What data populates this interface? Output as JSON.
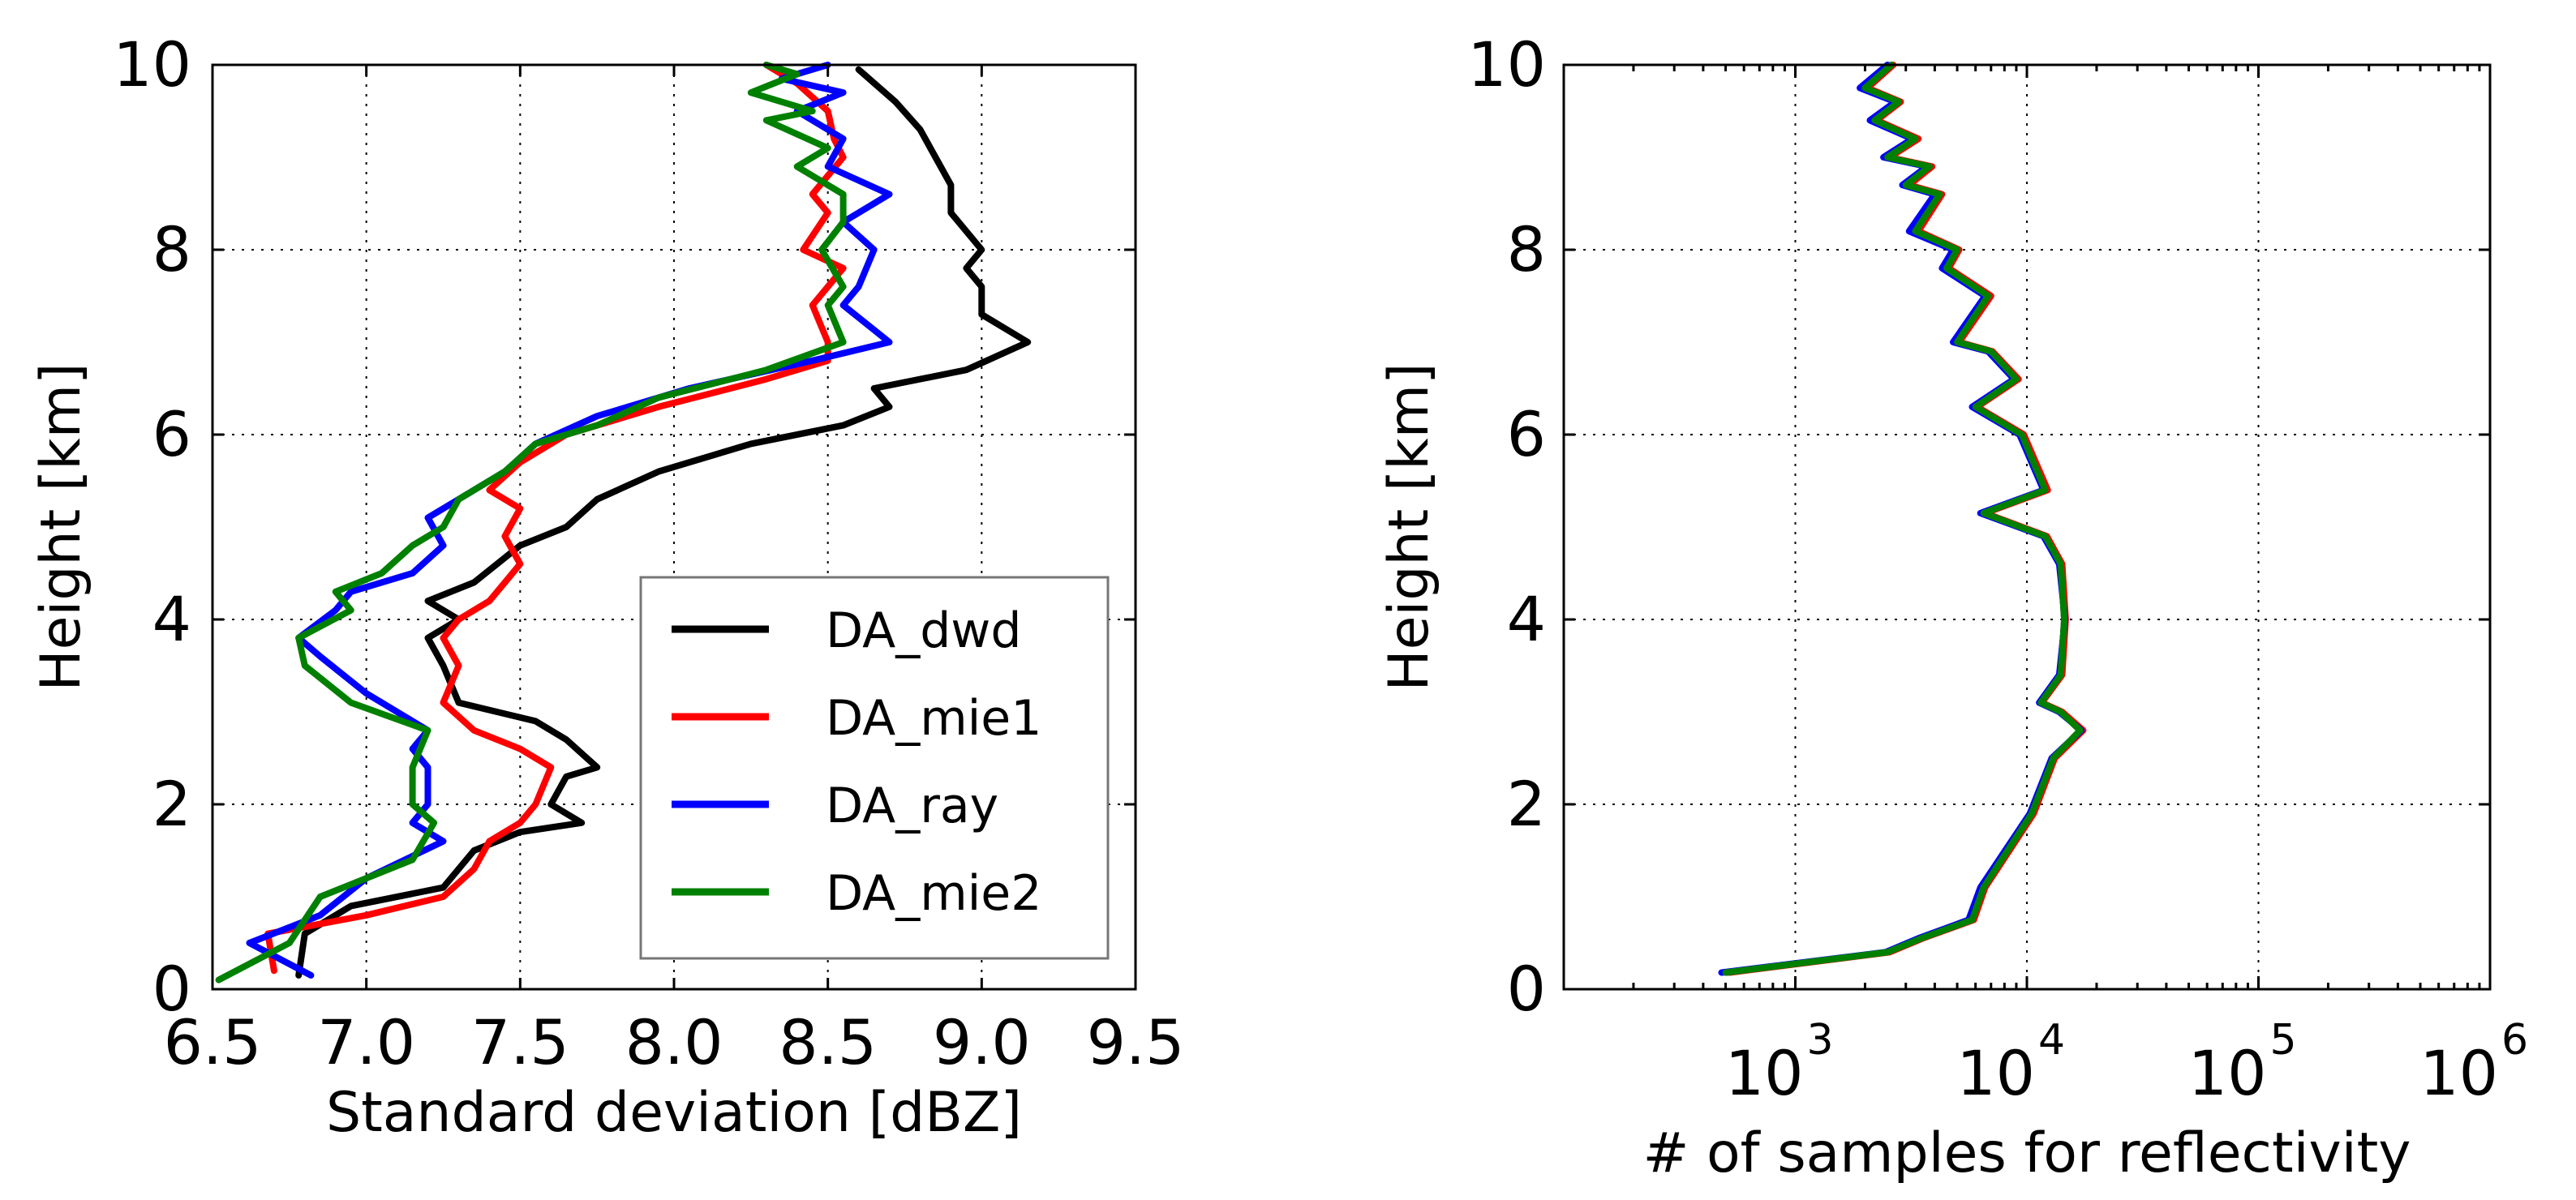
{
  "chart_data": [
    {
      "type": "line",
      "xlabel": "Standard deviation [dBZ]",
      "ylabel": "Height [km]",
      "xlim": [
        6.5,
        9.5
      ],
      "ylim": [
        0,
        10
      ],
      "xticks": [
        "6.5",
        "7.0",
        "7.5",
        "8.0",
        "8.5",
        "9.0",
        "9.5"
      ],
      "yticks": [
        "0",
        "2",
        "4",
        "6",
        "8",
        "10"
      ],
      "grid": true,
      "legend_position": "lower-right",
      "series": [
        {
          "name": "DA_dwd",
          "color": "#000000",
          "x": [
            6.78,
            6.8,
            6.95,
            7.25,
            7.35,
            7.5,
            7.7,
            7.6,
            7.65,
            7.75,
            7.65,
            7.55,
            7.3,
            7.25,
            7.2,
            7.3,
            7.2,
            7.35,
            7.5,
            7.65,
            7.75,
            7.95,
            8.25,
            8.55,
            8.7,
            8.65,
            8.95,
            9.15,
            9.0,
            9.0,
            8.95,
            9.0,
            8.9,
            8.9,
            8.85,
            8.8,
            8.72,
            8.6
          ],
          "y": [
            0.15,
            0.6,
            0.9,
            1.1,
            1.5,
            1.7,
            1.8,
            2.0,
            2.3,
            2.4,
            2.7,
            2.9,
            3.1,
            3.5,
            3.8,
            4.0,
            4.2,
            4.4,
            4.8,
            5.0,
            5.3,
            5.6,
            5.9,
            6.1,
            6.3,
            6.5,
            6.7,
            7.0,
            7.3,
            7.6,
            7.8,
            8.0,
            8.4,
            8.7,
            9.0,
            9.3,
            9.6,
            9.95
          ]
        },
        {
          "name": "DA_mie1",
          "color": "#ff0000",
          "x": [
            6.7,
            6.68,
            7.0,
            7.25,
            7.35,
            7.4,
            7.5,
            7.55,
            7.6,
            7.5,
            7.35,
            7.25,
            7.3,
            7.25,
            7.3,
            7.4,
            7.45,
            7.5,
            7.45,
            7.5,
            7.4,
            7.5,
            7.65,
            7.95,
            8.3,
            8.5,
            8.5,
            8.45,
            8.55,
            8.42,
            8.5,
            8.45,
            8.55,
            8.52,
            8.5,
            8.4,
            8.3
          ],
          "y": [
            0.2,
            0.6,
            0.8,
            1.0,
            1.3,
            1.6,
            1.8,
            2.0,
            2.4,
            2.6,
            2.8,
            3.1,
            3.5,
            3.8,
            4.0,
            4.2,
            4.4,
            4.6,
            4.9,
            5.2,
            5.4,
            5.7,
            6.0,
            6.3,
            6.6,
            6.8,
            7.0,
            7.4,
            7.8,
            8.0,
            8.4,
            8.6,
            9.0,
            9.2,
            9.5,
            9.8,
            10.0
          ]
        },
        {
          "name": "DA_ray",
          "color": "#0000ff",
          "x": [
            6.82,
            6.62,
            6.85,
            7.0,
            7.25,
            7.15,
            7.2,
            7.2,
            7.15,
            7.2,
            7.0,
            6.85,
            6.78,
            6.9,
            6.95,
            7.15,
            7.25,
            7.2,
            7.3,
            7.45,
            7.55,
            7.75,
            8.05,
            8.45,
            8.7,
            8.55,
            8.6,
            8.65,
            8.55,
            8.7,
            8.5,
            8.55,
            8.4,
            8.55,
            8.35,
            8.5
          ],
          "y": [
            0.15,
            0.5,
            0.8,
            1.2,
            1.6,
            1.8,
            2.0,
            2.4,
            2.6,
            2.8,
            3.2,
            3.6,
            3.8,
            4.1,
            4.3,
            4.5,
            4.8,
            5.1,
            5.3,
            5.6,
            5.9,
            6.2,
            6.5,
            6.8,
            7.0,
            7.4,
            7.6,
            8.0,
            8.3,
            8.6,
            8.9,
            9.2,
            9.5,
            9.7,
            9.85,
            10.0
          ]
        },
        {
          "name": "DA_mie2",
          "color": "#008000",
          "x": [
            6.52,
            6.75,
            6.85,
            7.15,
            7.22,
            7.15,
            7.15,
            7.2,
            6.95,
            6.8,
            6.78,
            6.95,
            6.9,
            7.05,
            7.15,
            7.25,
            7.3,
            7.45,
            7.55,
            7.75,
            7.95,
            8.3,
            8.55,
            8.5,
            8.55,
            8.48,
            8.55,
            8.55,
            8.4,
            8.5,
            8.3,
            8.45,
            8.25,
            8.4,
            8.3
          ],
          "y": [
            0.1,
            0.5,
            1.0,
            1.4,
            1.8,
            2.0,
            2.4,
            2.8,
            3.1,
            3.5,
            3.8,
            4.1,
            4.3,
            4.5,
            4.8,
            5.0,
            5.3,
            5.6,
            5.9,
            6.1,
            6.4,
            6.7,
            7.0,
            7.4,
            7.6,
            8.0,
            8.3,
            8.6,
            8.9,
            9.1,
            9.4,
            9.5,
            9.7,
            9.9,
            10.0
          ]
        }
      ]
    },
    {
      "type": "line",
      "xlabel": "# of samples for reflectivity",
      "ylabel": "Height [km]",
      "xscale": "log",
      "xlim": [
        100,
        1000000
      ],
      "ylim": [
        0,
        10
      ],
      "xticks": [
        {
          "base": "10",
          "exp": "3",
          "value": 1000
        },
        {
          "base": "10",
          "exp": "4",
          "value": 10000
        },
        {
          "base": "10",
          "exp": "5",
          "value": 100000
        },
        {
          "base": "10",
          "exp": "6",
          "value": 1000000
        }
      ],
      "yticks": [
        "0",
        "2",
        "4",
        "6",
        "8",
        "10"
      ],
      "grid": true,
      "series": [
        {
          "name": "DA_dwd",
          "color": "#000000",
          "x": [
            500,
            2500,
            3500,
            5800,
            6500,
            10500,
            13000,
            17000,
            14000,
            11500,
            14000,
            14500,
            14000,
            12000,
            6500,
            12000,
            9500,
            6000,
            9000,
            7000,
            5000,
            6800,
            4500,
            5000,
            3300,
            4200,
            3000,
            3800,
            2500,
            3300,
            2200,
            2800,
            2000,
            2600
          ],
          "y": [
            0.18,
            0.4,
            0.55,
            0.75,
            1.1,
            1.9,
            2.5,
            2.8,
            3.0,
            3.1,
            3.4,
            4.0,
            4.6,
            4.9,
            5.15,
            5.4,
            6.0,
            6.3,
            6.6,
            6.9,
            7.0,
            7.5,
            7.8,
            8.0,
            8.2,
            8.6,
            8.7,
            8.9,
            9.0,
            9.2,
            9.4,
            9.6,
            9.75,
            10.0
          ]
        },
        {
          "name": "DA_mie1",
          "color": "#ff0000",
          "x": [
            520,
            2550,
            3550,
            5900,
            6600,
            10700,
            13200,
            17500,
            14200,
            11600,
            14200,
            14700,
            14200,
            12200,
            6600,
            12300,
            9700,
            6100,
            9200,
            7100,
            5100,
            7000,
            4600,
            5100,
            3400,
            4300,
            3100,
            3900,
            2550,
            3400,
            2250,
            2850,
            2050,
            2650
          ],
          "y": [
            0.18,
            0.4,
            0.55,
            0.75,
            1.1,
            1.9,
            2.5,
            2.8,
            3.0,
            3.1,
            3.4,
            4.0,
            4.6,
            4.9,
            5.15,
            5.4,
            6.0,
            6.3,
            6.6,
            6.9,
            7.0,
            7.5,
            7.8,
            8.0,
            8.2,
            8.6,
            8.7,
            8.9,
            9.0,
            9.2,
            9.4,
            9.6,
            9.75,
            10.0
          ]
        },
        {
          "name": "DA_ray",
          "color": "#0000ff",
          "x": [
            480,
            2450,
            3400,
            5600,
            6300,
            10300,
            12800,
            17200,
            13800,
            11300,
            13800,
            14600,
            13800,
            11800,
            6300,
            11800,
            9300,
            5800,
            8800,
            6800,
            4800,
            6600,
            4300,
            4800,
            3100,
            4000,
            2900,
            3700,
            2400,
            3200,
            2100,
            2700,
            1900,
            2500
          ],
          "y": [
            0.18,
            0.4,
            0.55,
            0.75,
            1.1,
            1.9,
            2.5,
            2.8,
            3.0,
            3.1,
            3.4,
            4.0,
            4.6,
            4.9,
            5.15,
            5.4,
            6.0,
            6.3,
            6.6,
            6.9,
            7.0,
            7.5,
            7.8,
            8.0,
            8.2,
            8.6,
            8.7,
            8.9,
            9.0,
            9.2,
            9.4,
            9.6,
            9.75,
            10.0
          ]
        },
        {
          "name": "DA_mie2",
          "color": "#008000",
          "x": [
            500,
            2500,
            3500,
            5800,
            6500,
            10500,
            13000,
            17000,
            14000,
            11500,
            14000,
            14500,
            14000,
            12000,
            6500,
            12000,
            9500,
            6000,
            9000,
            7000,
            5000,
            6800,
            4500,
            5000,
            3300,
            4200,
            3000,
            3800,
            2500,
            3300,
            2200,
            2800,
            2000,
            2600
          ],
          "y": [
            0.18,
            0.4,
            0.55,
            0.75,
            1.1,
            1.9,
            2.5,
            2.8,
            3.0,
            3.1,
            3.4,
            4.0,
            4.6,
            4.9,
            5.15,
            5.4,
            6.0,
            6.3,
            6.6,
            6.9,
            7.0,
            7.5,
            7.8,
            8.0,
            8.2,
            8.6,
            8.7,
            8.9,
            9.0,
            9.2,
            9.4,
            9.6,
            9.75,
            10.0
          ]
        }
      ]
    }
  ]
}
